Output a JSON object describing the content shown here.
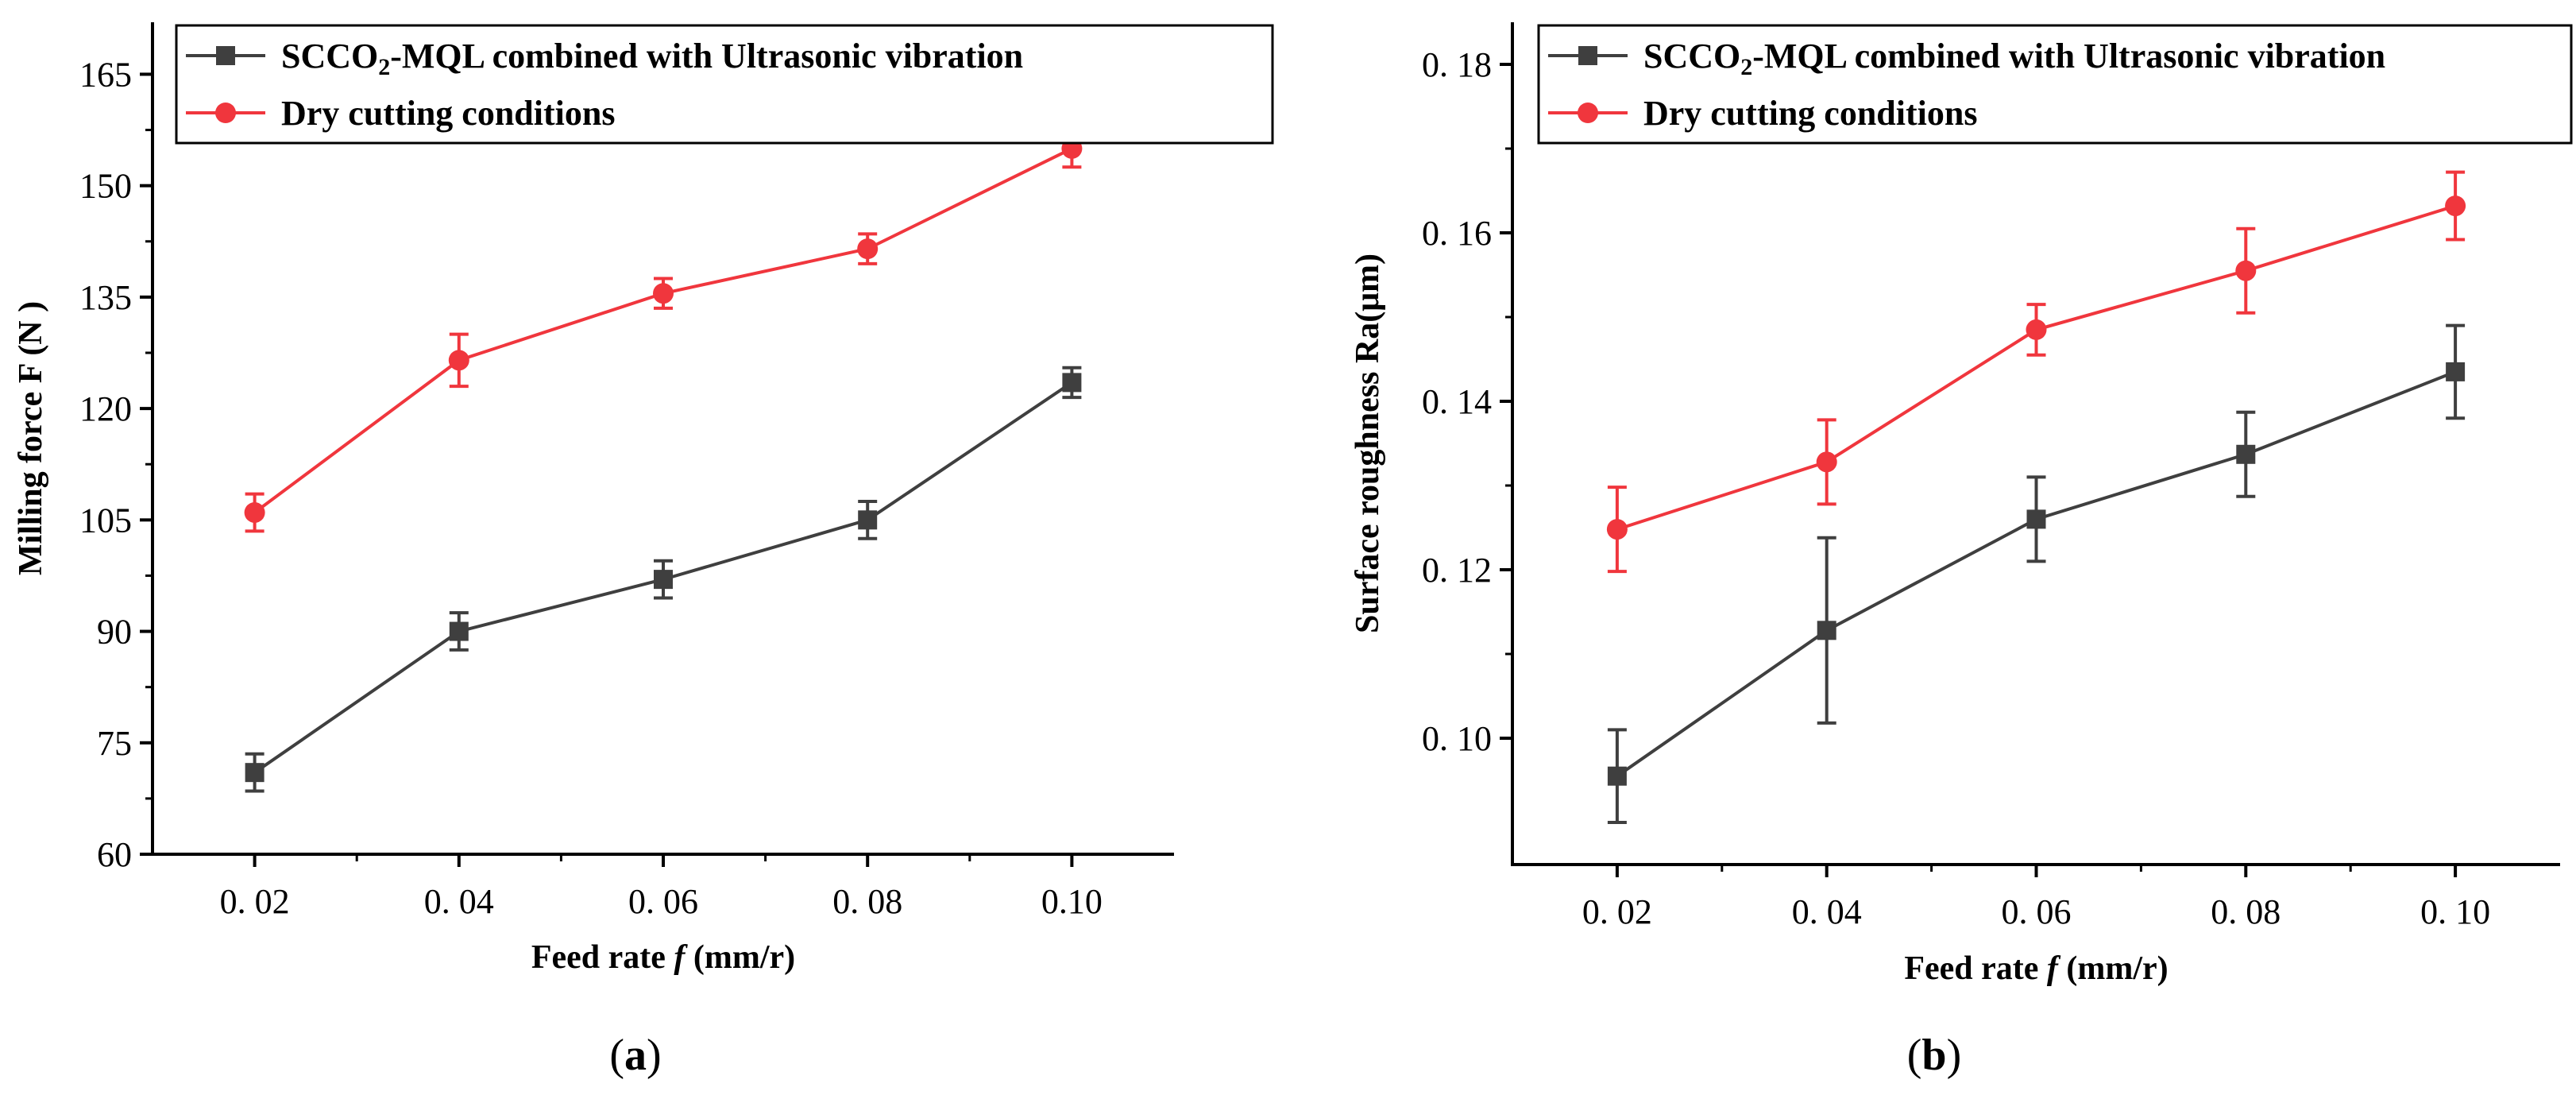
{
  "chart_data": [
    {
      "type": "line",
      "panel_label": "(a)",
      "panel_letter": "a",
      "xlabel": "Feed rate",
      "xlabel_symbol": "f",
      "xlabel_unit": "(mm/r)",
      "ylabel": "Milling force  F (N )",
      "categories": [
        "0. 02",
        "0. 04",
        "0. 06",
        "0. 08",
        "0.10"
      ],
      "x": [
        0.02,
        0.04,
        0.06,
        0.08,
        0.1
      ],
      "xlim": [
        0.01,
        0.11
      ],
      "ylim": [
        60,
        172
      ],
      "yticks": [
        60,
        75,
        90,
        105,
        120,
        135,
        150,
        165
      ],
      "ytick_labels": [
        "60",
        "75",
        "90",
        "105",
        "120",
        "135",
        "150",
        "165"
      ],
      "series": [
        {
          "name_prefix": "SCCO",
          "name_sub": "2",
          "name_suffix": "-MQL combined with Ultrasonic vibration",
          "color": "#3f3f3f",
          "marker": "square",
          "values": [
            71,
            90,
            97,
            105,
            123.5
          ],
          "errors": [
            2.5,
            2.5,
            2.5,
            2.5,
            2
          ]
        },
        {
          "name": "Dry cutting conditions",
          "color": "#f0363d",
          "marker": "circle",
          "values": [
            106,
            126.5,
            135.5,
            141.5,
            155
          ],
          "errors": [
            2.5,
            3.5,
            2,
            2,
            2.5
          ]
        }
      ]
    },
    {
      "type": "line",
      "panel_label": "(b)",
      "panel_letter": "b",
      "xlabel": "Feed rate",
      "xlabel_symbol": "f",
      "xlabel_unit": "(mm/r)",
      "ylabel": "Surface roughness Ra(μm)",
      "categories": [
        "0. 02",
        "0. 04",
        "0. 06",
        "0. 08",
        "0. 10"
      ],
      "x": [
        0.02,
        0.04,
        0.06,
        0.08,
        0.1
      ],
      "xlim": [
        0.01,
        0.11
      ],
      "ylim": [
        0.085,
        0.185
      ],
      "yticks": [
        0.1,
        0.12,
        0.14,
        0.16,
        0.18
      ],
      "ytick_labels": [
        "0. 10",
        "0. 12",
        "0. 14",
        "0. 16",
        "0. 18"
      ],
      "series": [
        {
          "name_prefix": "SCCO",
          "name_sub": "2",
          "name_suffix": "-MQL combined with Ultrasonic vibration",
          "color": "#3f3f3f",
          "marker": "square",
          "values": [
            0.0955,
            0.1128,
            0.126,
            0.1337,
            0.1435
          ],
          "errors": [
            0.0055,
            0.011,
            0.005,
            0.005,
            0.0055
          ]
        },
        {
          "name": "Dry cutting conditions",
          "color": "#f0363d",
          "marker": "circle",
          "values": [
            0.1248,
            0.1328,
            0.1485,
            0.1555,
            0.1632
          ],
          "errors": [
            0.005,
            0.005,
            0.003,
            0.005,
            0.004
          ]
        }
      ]
    }
  ]
}
